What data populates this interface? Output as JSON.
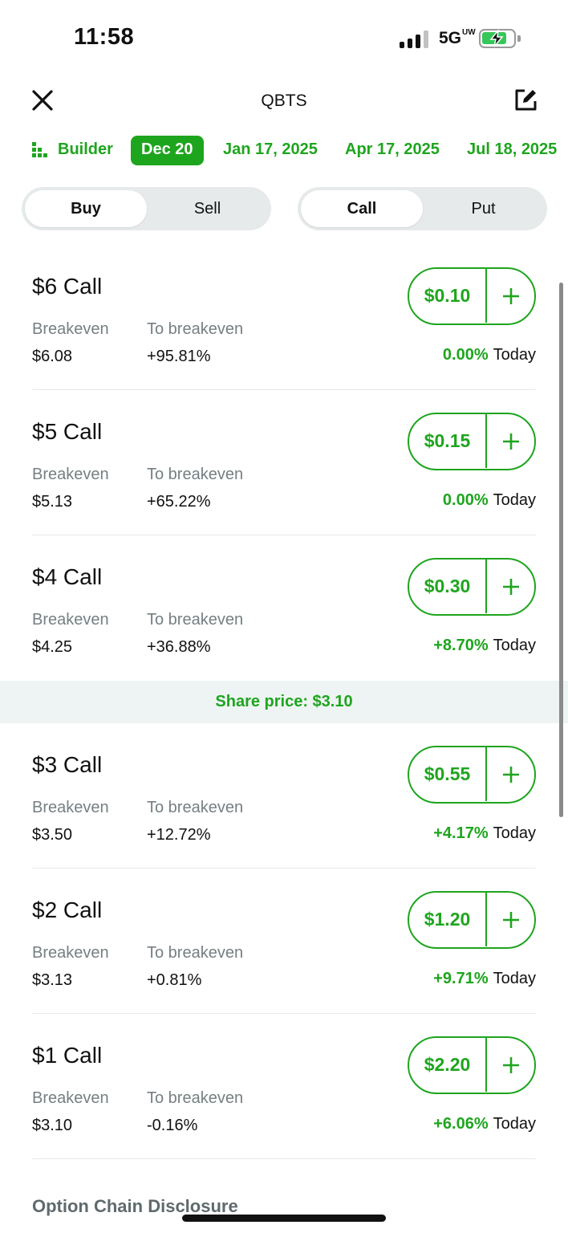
{
  "status_bar": {
    "time": "11:58",
    "network": "5G",
    "network_suffix": "UW"
  },
  "header": {
    "title": "QBTS"
  },
  "expirations": {
    "builder_label": "Builder",
    "dates": [
      "Dec 20",
      "Jan 17, 2025",
      "Apr 17, 2025",
      "Jul 18, 2025"
    ],
    "selected": "Dec 20"
  },
  "side_toggle": {
    "buy": "Buy",
    "sell": "Sell",
    "selected": "Buy"
  },
  "type_toggle": {
    "call": "Call",
    "put": "Put",
    "selected": "Call"
  },
  "columns": {
    "breakeven_label": "Breakeven",
    "to_breakeven_label": "To breakeven",
    "today_label": "Today"
  },
  "share_price": "Share price: $3.10",
  "options": [
    {
      "strike": "$6 Call",
      "breakeven": "$6.08",
      "to_breakeven": "+95.81%",
      "price": "$0.10",
      "change": "0.00%"
    },
    {
      "strike": "$5 Call",
      "breakeven": "$5.13",
      "to_breakeven": "+65.22%",
      "price": "$0.15",
      "change": "0.00%"
    },
    {
      "strike": "$4 Call",
      "breakeven": "$4.25",
      "to_breakeven": "+36.88%",
      "price": "$0.30",
      "change": "+8.70%"
    },
    {
      "strike": "$3 Call",
      "breakeven": "$3.50",
      "to_breakeven": "+12.72%",
      "price": "$0.55",
      "change": "+4.17%"
    },
    {
      "strike": "$2 Call",
      "breakeven": "$3.13",
      "to_breakeven": "+0.81%",
      "price": "$1.20",
      "change": "+9.71%"
    },
    {
      "strike": "$1 Call",
      "breakeven": "$3.10",
      "to_breakeven": "-0.16%",
      "price": "$2.20",
      "change": "+6.06%"
    }
  ],
  "footer": {
    "disclosure": "Option Chain Disclosure"
  },
  "colors": {
    "accent": "#1ea51e",
    "muted_text": "#757f82",
    "segment_bg": "#e6eaeb",
    "share_price_bg": "#eef4f3"
  }
}
